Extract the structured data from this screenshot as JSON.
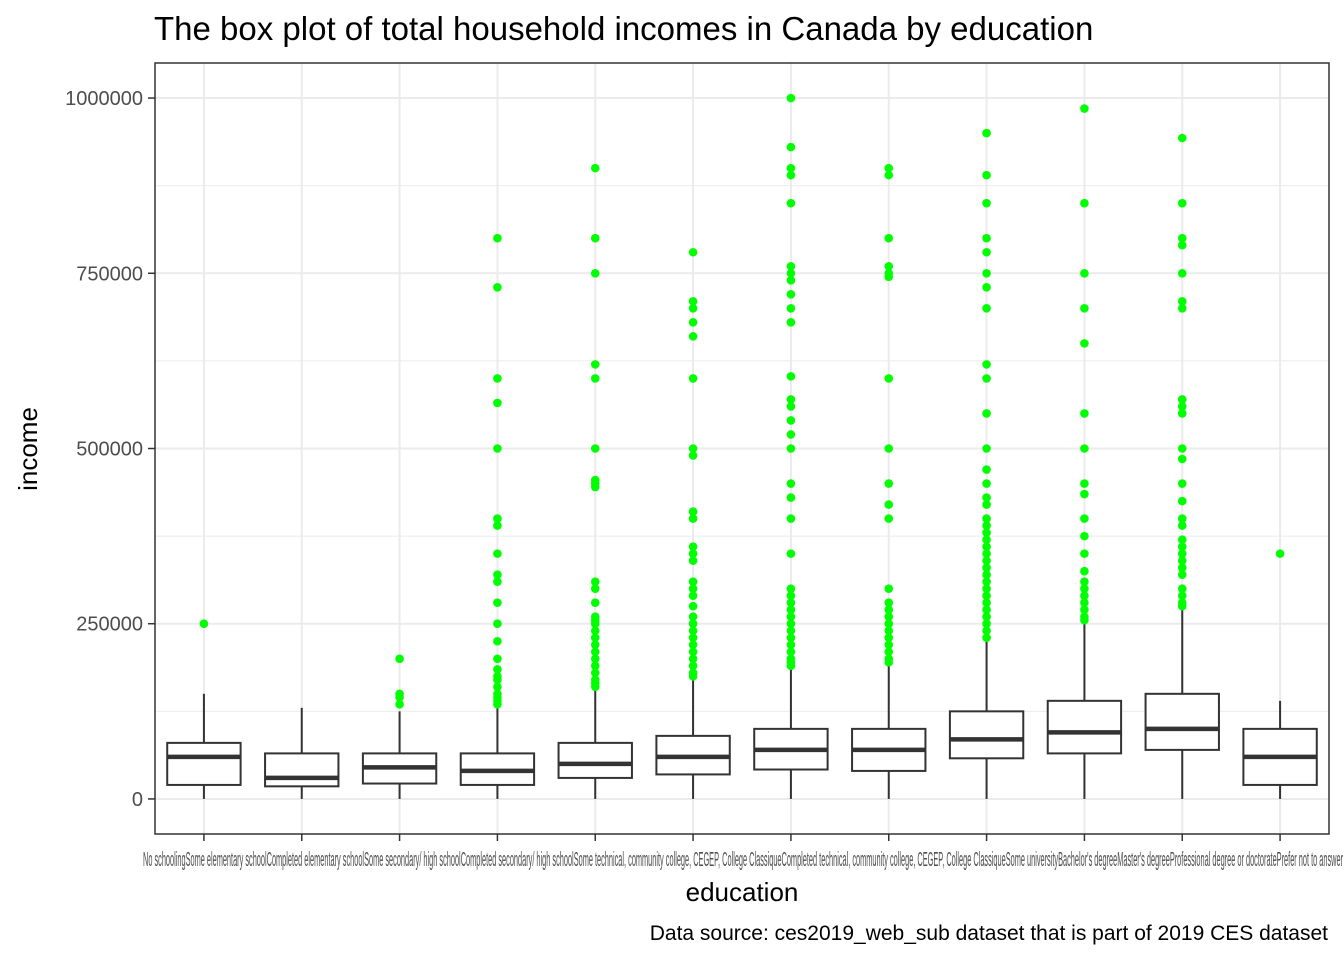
{
  "chart_data": {
    "type": "box",
    "title": "The box plot of total household incomes in Canada by education",
    "xlabel": "education",
    "ylabel": "income",
    "caption": "Data source: ces2019_web_sub dataset that is part of 2019 CES dataset",
    "ylim": [
      -50000,
      1050000
    ],
    "yticks": [
      0,
      250000,
      500000,
      750000,
      1000000
    ],
    "ytick_labels": [
      "0",
      "250000",
      "500000",
      "750000",
      "1000000"
    ],
    "grid": true,
    "theme": "bw",
    "box_color": "#333333",
    "outlier_color": "#00ff00",
    "categories": [
      "No schooling",
      "Some elementary school",
      "Completed elementary school",
      "Some secondary/ high school",
      "Completed secondary/ high school",
      "Some technical, community college, CEGEP, College Classique",
      "Completed technical, community college, CEGEP, College Classique",
      "Some university",
      "Bachelor's degree",
      "Master's degree",
      "Professional degree or doctorate",
      "Prefer not to answer"
    ],
    "category_labels_visible": "No schoolingSome elementary schoolCompleted elementary schoolSome secondary/ high schoolCompleted secondary/ high schoolSome technical, community college, CEGEP, College ClassiqueCompleted technical, community college, CEGEP, College ClassiqueSome universityBachelor's degreeMaster's degreeProfessional degree or doctoratePrefer not to answer",
    "boxes": [
      {
        "min": 0,
        "q1": 20000,
        "median": 60000,
        "q3": 80000,
        "max": 150000,
        "outliers": [
          250000
        ]
      },
      {
        "min": 0,
        "q1": 18000,
        "median": 30000,
        "q3": 65000,
        "max": 130000,
        "outliers": []
      },
      {
        "min": 0,
        "q1": 22000,
        "median": 45000,
        "q3": 65000,
        "max": 125000,
        "outliers": [
          135000,
          145000,
          150000,
          200000
        ]
      },
      {
        "min": 0,
        "q1": 20000,
        "median": 40000,
        "q3": 65000,
        "max": 130000,
        "outliers": [
          135000,
          140000,
          145000,
          150000,
          160000,
          170000,
          175000,
          185000,
          200000,
          225000,
          250000,
          280000,
          310000,
          320000,
          350000,
          390000,
          400000,
          500000,
          565000,
          600000,
          730000,
          800000
        ]
      },
      {
        "min": 0,
        "q1": 30000,
        "median": 50000,
        "q3": 80000,
        "max": 155000,
        "outliers": [
          160000,
          165000,
          170000,
          180000,
          190000,
          200000,
          210000,
          220000,
          230000,
          240000,
          250000,
          255000,
          260000,
          280000,
          300000,
          310000,
          445000,
          450000,
          455000,
          500000,
          600000,
          620000,
          750000,
          800000,
          900000
        ]
      },
      {
        "min": 0,
        "q1": 35000,
        "median": 60000,
        "q3": 90000,
        "max": 172000,
        "outliers": [
          175000,
          180000,
          190000,
          200000,
          210000,
          220000,
          230000,
          240000,
          250000,
          260000,
          275000,
          290000,
          300000,
          310000,
          340000,
          350000,
          360000,
          400000,
          410000,
          490000,
          500000,
          600000,
          660000,
          680000,
          700000,
          710000,
          780000
        ]
      },
      {
        "min": 0,
        "q1": 42000,
        "median": 70000,
        "q3": 100000,
        "max": 188000,
        "outliers": [
          190000,
          195000,
          200000,
          210000,
          220000,
          230000,
          240000,
          250000,
          260000,
          270000,
          280000,
          290000,
          300000,
          350000,
          400000,
          430000,
          450000,
          500000,
          520000,
          540000,
          560000,
          570000,
          603000,
          680000,
          700000,
          720000,
          740000,
          750000,
          760000,
          850000,
          890000,
          900000,
          930000,
          1000000
        ]
      },
      {
        "min": 0,
        "q1": 40000,
        "median": 70000,
        "q3": 100000,
        "max": 190000,
        "outliers": [
          195000,
          200000,
          210000,
          220000,
          230000,
          240000,
          250000,
          260000,
          270000,
          280000,
          300000,
          400000,
          420000,
          450000,
          500000,
          600000,
          745000,
          750000,
          760000,
          800000,
          890000,
          900000
        ]
      },
      {
        "min": 0,
        "q1": 58000,
        "median": 85000,
        "q3": 125000,
        "max": 225000,
        "outliers": [
          230000,
          240000,
          250000,
          260000,
          270000,
          280000,
          290000,
          300000,
          310000,
          320000,
          330000,
          340000,
          350000,
          360000,
          370000,
          380000,
          390000,
          400000,
          420000,
          430000,
          450000,
          470000,
          500000,
          550000,
          600000,
          620000,
          700000,
          730000,
          750000,
          780000,
          800000,
          850000,
          890000,
          950000
        ]
      },
      {
        "min": 0,
        "q1": 65000,
        "median": 95000,
        "q3": 140000,
        "max": 250000,
        "outliers": [
          255000,
          260000,
          270000,
          280000,
          290000,
          300000,
          310000,
          325000,
          350000,
          375000,
          400000,
          435000,
          450000,
          500000,
          550000,
          650000,
          700000,
          750000,
          850000,
          985000
        ]
      },
      {
        "min": 0,
        "q1": 70000,
        "median": 100000,
        "q3": 150000,
        "max": 270000,
        "outliers": [
          275000,
          280000,
          290000,
          300000,
          320000,
          330000,
          340000,
          350000,
          360000,
          370000,
          390000,
          400000,
          425000,
          450000,
          485000,
          500000,
          550000,
          560000,
          570000,
          700000,
          710000,
          750000,
          790000,
          800000,
          850000,
          943000
        ]
      },
      {
        "min": 0,
        "q1": 20000,
        "median": 60000,
        "q3": 100000,
        "max": 140000,
        "outliers": [
          350000
        ]
      }
    ]
  }
}
